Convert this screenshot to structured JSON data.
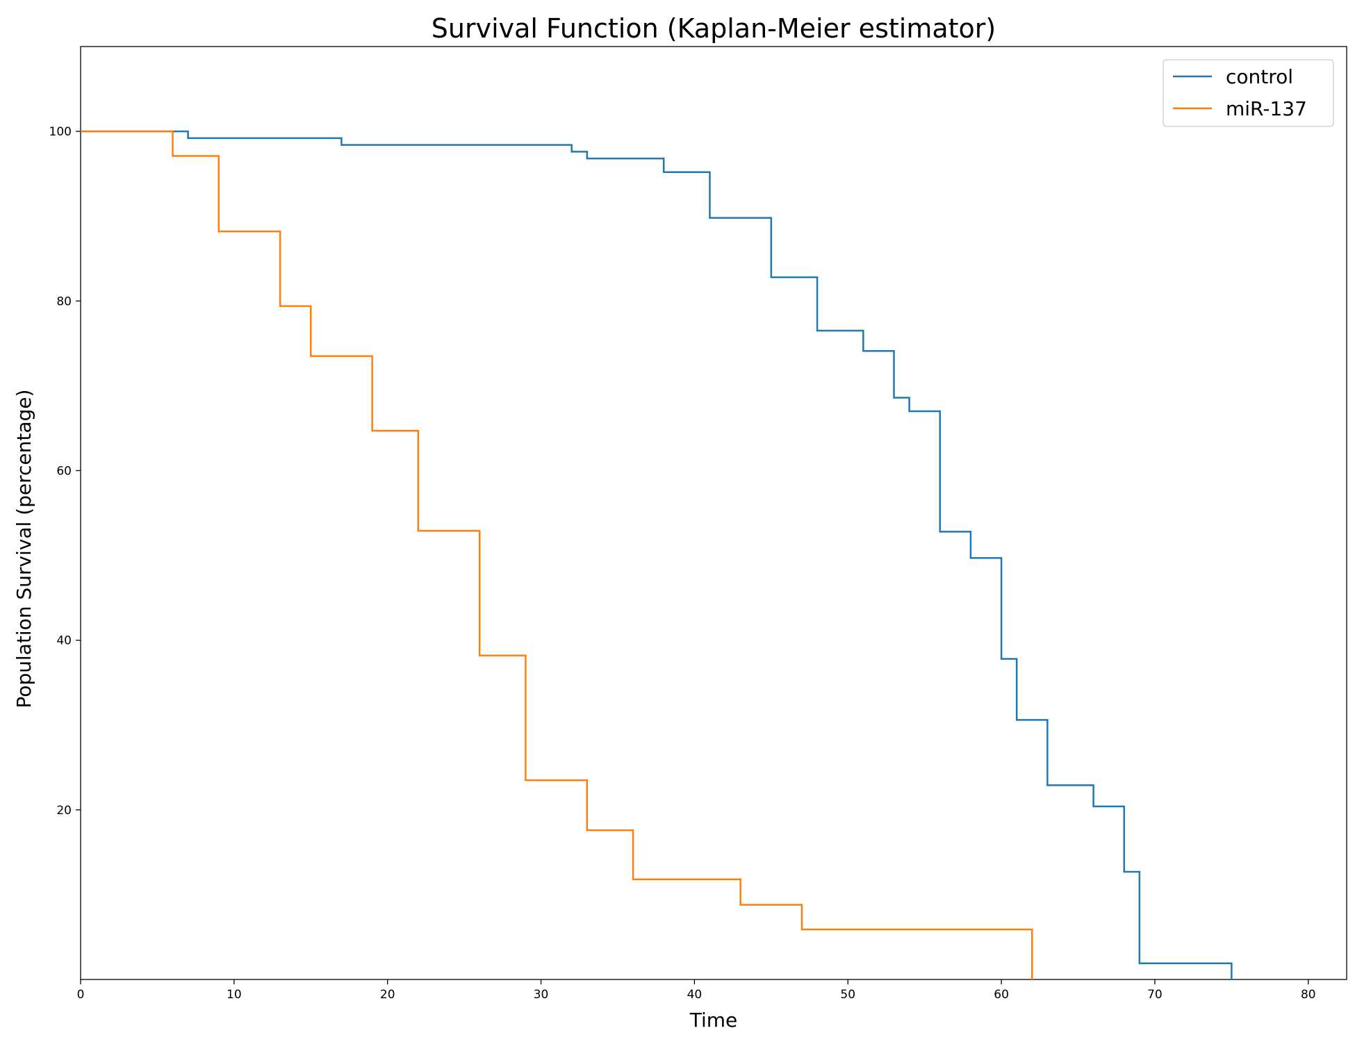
{
  "chart_data": {
    "type": "line",
    "step": "post",
    "title": "Survival Function (Kaplan-Meier estimator)",
    "xlabel": "Time",
    "ylabel": "Population Survival (percentage)",
    "xlim": [
      0,
      82.5
    ],
    "ylim": [
      0,
      110
    ],
    "xticks": [
      0,
      10,
      20,
      30,
      40,
      50,
      60,
      70,
      80
    ],
    "yticks": [
      20,
      40,
      60,
      80,
      100
    ],
    "grid": false,
    "legend_position": "top-right",
    "series": [
      {
        "name": "control",
        "color": "#1f77b4",
        "x": [
          0,
          7,
          17,
          32,
          33,
          38,
          41,
          45,
          48,
          51,
          53,
          54,
          56,
          58,
          60,
          61,
          63,
          66,
          68,
          69,
          75
        ],
        "y": [
          100,
          99.2,
          98.4,
          97.6,
          96.8,
          95.2,
          89.8,
          82.8,
          76.5,
          74.1,
          68.6,
          67.0,
          52.8,
          49.7,
          37.8,
          30.6,
          22.9,
          20.4,
          12.7,
          1.9,
          0
        ]
      },
      {
        "name": "miR-137",
        "color": "#ff7f0e",
        "x": [
          0,
          6,
          9,
          13,
          15,
          19,
          22,
          26,
          29,
          33,
          36,
          43,
          47,
          62
        ],
        "y": [
          100,
          97.1,
          88.2,
          79.4,
          73.5,
          64.7,
          52.9,
          38.2,
          23.5,
          17.6,
          11.8,
          8.8,
          5.9,
          0
        ]
      }
    ]
  }
}
